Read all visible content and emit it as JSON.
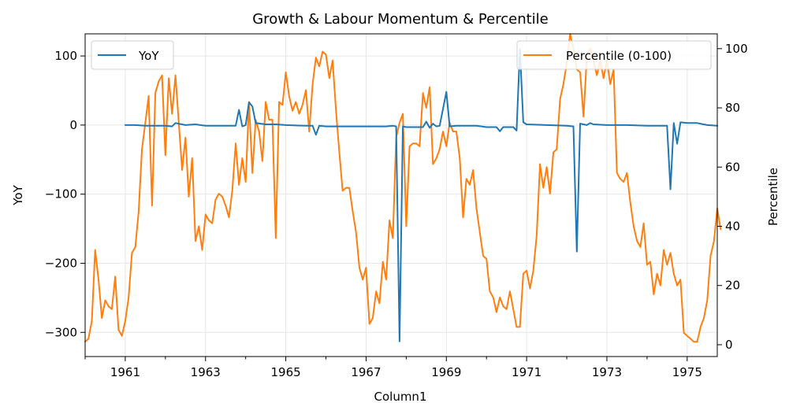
{
  "chart_data": {
    "type": "line",
    "title": "Growth & Labour Momentum & Percentile",
    "xlabel": "Column1",
    "ylabel_left": "YoY",
    "ylabel_right": "Percentile",
    "x_range": [
      "1960-01",
      "1975-10"
    ],
    "ylim_left": [
      -335,
      132
    ],
    "ylim_right": [
      -4,
      105
    ],
    "x_ticks": [
      "1961",
      "1963",
      "1965",
      "1967",
      "1969",
      "1971",
      "1973",
      "1975"
    ],
    "y_ticks_left": [
      "100",
      "0",
      "−100",
      "−200",
      "−300"
    ],
    "y_ticks_right": [
      "100",
      "80",
      "60",
      "40",
      "20",
      "0"
    ],
    "grid": true,
    "legend_left": "top-left",
    "legend_right": "top-right",
    "series": [
      {
        "name": "YoY",
        "axis": "left",
        "color": "#1f77b4",
        "points": [
          [
            "1961-01",
            0
          ],
          [
            "1961-04",
            0
          ],
          [
            "1961-07",
            -1
          ],
          [
            "1961-10",
            -1
          ],
          [
            "1962-01",
            -1
          ],
          [
            "1962-03",
            -2
          ],
          [
            "1962-04",
            3
          ],
          [
            "1962-07",
            0
          ],
          [
            "1962-10",
            1
          ],
          [
            "1963-01",
            -1
          ],
          [
            "1963-07",
            -1
          ],
          [
            "1963-10",
            -1
          ],
          [
            "1963-11",
            22
          ],
          [
            "1963-12",
            -2
          ],
          [
            "1964-01",
            0
          ],
          [
            "1964-02",
            33
          ],
          [
            "1964-03",
            27
          ],
          [
            "1964-04",
            3
          ],
          [
            "1964-07",
            1
          ],
          [
            "1964-10",
            1
          ],
          [
            "1965-01",
            0
          ],
          [
            "1965-07",
            -1
          ],
          [
            "1965-09",
            -1
          ],
          [
            "1965-10",
            -14
          ],
          [
            "1965-11",
            -1
          ],
          [
            "1966-01",
            -2
          ],
          [
            "1966-07",
            -2
          ],
          [
            "1967-01",
            -2
          ],
          [
            "1967-07",
            -2
          ],
          [
            "1967-09",
            -1
          ],
          [
            "1967-10",
            -2
          ],
          [
            "1967-11",
            -313
          ],
          [
            "1967-12",
            -2
          ],
          [
            "1968-01",
            -3
          ],
          [
            "1968-06",
            -3
          ],
          [
            "1968-07",
            5
          ],
          [
            "1968-08",
            -4
          ],
          [
            "1968-09",
            2
          ],
          [
            "1968-10",
            -2
          ],
          [
            "1968-11",
            -1
          ],
          [
            "1969-01",
            48
          ],
          [
            "1969-02",
            -2
          ],
          [
            "1969-04",
            -1
          ],
          [
            "1969-10",
            -1
          ],
          [
            "1970-01",
            -3
          ],
          [
            "1970-04",
            -3
          ],
          [
            "1970-05",
            -9
          ],
          [
            "1970-06",
            -3
          ],
          [
            "1970-09",
            -3
          ],
          [
            "1970-10",
            -8
          ],
          [
            "1970-11",
            110
          ],
          [
            "1970-12",
            4
          ],
          [
            "1971-01",
            1
          ],
          [
            "1971-07",
            0
          ],
          [
            "1972-01",
            -1
          ],
          [
            "1972-03",
            -2
          ],
          [
            "1972-04",
            -183
          ],
          [
            "1972-05",
            2
          ],
          [
            "1972-07",
            0
          ],
          [
            "1972-08",
            3
          ],
          [
            "1972-09",
            1
          ],
          [
            "1973-01",
            0
          ],
          [
            "1973-07",
            0
          ],
          [
            "1974-01",
            -1
          ],
          [
            "1974-07",
            -1
          ],
          [
            "1974-08",
            -93
          ],
          [
            "1974-09",
            3
          ],
          [
            "1974-10",
            -27
          ],
          [
            "1974-11",
            4
          ],
          [
            "1975-01",
            3
          ],
          [
            "1975-04",
            3
          ],
          [
            "1975-07",
            0
          ],
          [
            "1975-10",
            -1
          ]
        ]
      },
      {
        "name": "Percentile (0-100)",
        "axis": "right",
        "color": "#ff7f0e",
        "points": [
          [
            "1960-01",
            1
          ],
          [
            "1960-02",
            2
          ],
          [
            "1960-03",
            8
          ],
          [
            "1960-04",
            32
          ],
          [
            "1960-05",
            22
          ],
          [
            "1960-06",
            9
          ],
          [
            "1960-07",
            15
          ],
          [
            "1960-08",
            13
          ],
          [
            "1960-09",
            12
          ],
          [
            "1960-10",
            23
          ],
          [
            "1960-11",
            5
          ],
          [
            "1960-12",
            3
          ],
          [
            "1961-01",
            8
          ],
          [
            "1961-02",
            16
          ],
          [
            "1961-03",
            31
          ],
          [
            "1961-04",
            33
          ],
          [
            "1961-05",
            45
          ],
          [
            "1961-06",
            66
          ],
          [
            "1961-07",
            75
          ],
          [
            "1961-08",
            84
          ],
          [
            "1961-09",
            47
          ],
          [
            "1961-10",
            85
          ],
          [
            "1961-11",
            89
          ],
          [
            "1961-12",
            91
          ],
          [
            "1962-01",
            64
          ],
          [
            "1962-02",
            90
          ],
          [
            "1962-03",
            78
          ],
          [
            "1962-04",
            91
          ],
          [
            "1962-05",
            75
          ],
          [
            "1962-06",
            59
          ],
          [
            "1962-07",
            70
          ],
          [
            "1962-08",
            50
          ],
          [
            "1962-09",
            63
          ],
          [
            "1962-10",
            35
          ],
          [
            "1962-11",
            40
          ],
          [
            "1962-12",
            32
          ],
          [
            "1963-01",
            44
          ],
          [
            "1963-02",
            42
          ],
          [
            "1963-03",
            41
          ],
          [
            "1963-04",
            49
          ],
          [
            "1963-05",
            51
          ],
          [
            "1963-06",
            50
          ],
          [
            "1963-07",
            47
          ],
          [
            "1963-08",
            43
          ],
          [
            "1963-09",
            52
          ],
          [
            "1963-10",
            68
          ],
          [
            "1963-11",
            54
          ],
          [
            "1963-12",
            63
          ],
          [
            "1964-01",
            55
          ],
          [
            "1964-02",
            82
          ],
          [
            "1964-03",
            58
          ],
          [
            "1964-04",
            76
          ],
          [
            "1964-05",
            72
          ],
          [
            "1964-06",
            62
          ],
          [
            "1964-07",
            82
          ],
          [
            "1964-08",
            76
          ],
          [
            "1964-09",
            76
          ],
          [
            "1964-10",
            36
          ],
          [
            "1964-11",
            82
          ],
          [
            "1964-12",
            81
          ],
          [
            "1965-01",
            92
          ],
          [
            "1965-02",
            84
          ],
          [
            "1965-03",
            79
          ],
          [
            "1965-04",
            82
          ],
          [
            "1965-05",
            78
          ],
          [
            "1965-06",
            81
          ],
          [
            "1965-07",
            86
          ],
          [
            "1965-08",
            72
          ],
          [
            "1965-09",
            88
          ],
          [
            "1965-10",
            97
          ],
          [
            "1965-11",
            94
          ],
          [
            "1965-12",
            99
          ],
          [
            "1966-01",
            98
          ],
          [
            "1966-02",
            90
          ],
          [
            "1966-03",
            96
          ],
          [
            "1966-04",
            79
          ],
          [
            "1966-05",
            65
          ],
          [
            "1966-06",
            52
          ],
          [
            "1966-07",
            53
          ],
          [
            "1966-08",
            53
          ],
          [
            "1966-09",
            45
          ],
          [
            "1966-10",
            38
          ],
          [
            "1966-11",
            26
          ],
          [
            "1966-12",
            22
          ],
          [
            "1967-01",
            26
          ],
          [
            "1967-02",
            7
          ],
          [
            "1967-03",
            9
          ],
          [
            "1967-04",
            18
          ],
          [
            "1967-05",
            14
          ],
          [
            "1967-06",
            28
          ],
          [
            "1967-07",
            22
          ],
          [
            "1967-08",
            42
          ],
          [
            "1967-09",
            36
          ],
          [
            "1967-10",
            70
          ],
          [
            "1967-11",
            75
          ],
          [
            "1967-12",
            78
          ],
          [
            "1968-01",
            40
          ],
          [
            "1968-02",
            67
          ],
          [
            "1968-03",
            68
          ],
          [
            "1968-04",
            68
          ],
          [
            "1968-05",
            67
          ],
          [
            "1968-06",
            85
          ],
          [
            "1968-07",
            80
          ],
          [
            "1968-08",
            87
          ],
          [
            "1968-09",
            61
          ],
          [
            "1968-10",
            63
          ],
          [
            "1968-11",
            66
          ],
          [
            "1968-12",
            72
          ],
          [
            "1969-01",
            67
          ],
          [
            "1969-02",
            75
          ],
          [
            "1969-03",
            72
          ],
          [
            "1969-04",
            72
          ],
          [
            "1969-05",
            63
          ],
          [
            "1969-06",
            43
          ],
          [
            "1969-07",
            56
          ],
          [
            "1969-08",
            54
          ],
          [
            "1969-09",
            59
          ],
          [
            "1969-10",
            46
          ],
          [
            "1969-11",
            38
          ],
          [
            "1969-12",
            30
          ],
          [
            "1970-01",
            29
          ],
          [
            "1970-02",
            18
          ],
          [
            "1970-03",
            16
          ],
          [
            "1970-04",
            11
          ],
          [
            "1970-05",
            16
          ],
          [
            "1970-06",
            13
          ],
          [
            "1970-07",
            12
          ],
          [
            "1970-08",
            18
          ],
          [
            "1970-09",
            12
          ],
          [
            "1970-10",
            6
          ],
          [
            "1970-11",
            6
          ],
          [
            "1970-12",
            24
          ],
          [
            "1971-01",
            25
          ],
          [
            "1971-02",
            19
          ],
          [
            "1971-03",
            25
          ],
          [
            "1971-04",
            37
          ],
          [
            "1971-05",
            61
          ],
          [
            "1971-06",
            53
          ],
          [
            "1971-07",
            60
          ],
          [
            "1971-08",
            51
          ],
          [
            "1971-09",
            65
          ],
          [
            "1971-10",
            66
          ],
          [
            "1971-11",
            83
          ],
          [
            "1971-12",
            88
          ],
          [
            "1972-01",
            95
          ],
          [
            "1972-02",
            105
          ],
          [
            "1972-03",
            100
          ],
          [
            "1972-04",
            93
          ],
          [
            "1972-05",
            92
          ],
          [
            "1972-06",
            77
          ],
          [
            "1972-07",
            97
          ],
          [
            "1972-08",
            100
          ],
          [
            "1972-09",
            96
          ],
          [
            "1972-10",
            91
          ],
          [
            "1972-11",
            96
          ],
          [
            "1972-12",
            90
          ],
          [
            "1973-01",
            96
          ],
          [
            "1973-02",
            88
          ],
          [
            "1973-03",
            93
          ],
          [
            "1973-04",
            58
          ],
          [
            "1973-05",
            56
          ],
          [
            "1973-06",
            55
          ],
          [
            "1973-07",
            58
          ],
          [
            "1973-08",
            48
          ],
          [
            "1973-09",
            40
          ],
          [
            "1973-10",
            35
          ],
          [
            "1973-11",
            33
          ],
          [
            "1973-12",
            41
          ],
          [
            "1974-01",
            27
          ],
          [
            "1974-02",
            28
          ],
          [
            "1974-03",
            17
          ],
          [
            "1974-04",
            24
          ],
          [
            "1974-05",
            20
          ],
          [
            "1974-06",
            32
          ],
          [
            "1974-07",
            27
          ],
          [
            "1974-08",
            31
          ],
          [
            "1974-09",
            24
          ],
          [
            "1974-10",
            20
          ],
          [
            "1974-11",
            22
          ],
          [
            "1974-12",
            4
          ],
          [
            "1975-01",
            3
          ],
          [
            "1975-02",
            2
          ],
          [
            "1975-03",
            1
          ],
          [
            "1975-04",
            1
          ],
          [
            "1975-05",
            6
          ],
          [
            "1975-06",
            9
          ],
          [
            "1975-07",
            15
          ],
          [
            "1975-08",
            30
          ],
          [
            "1975-09",
            35
          ],
          [
            "1975-10",
            46
          ],
          [
            "1975-11",
            39
          ]
        ]
      }
    ]
  }
}
